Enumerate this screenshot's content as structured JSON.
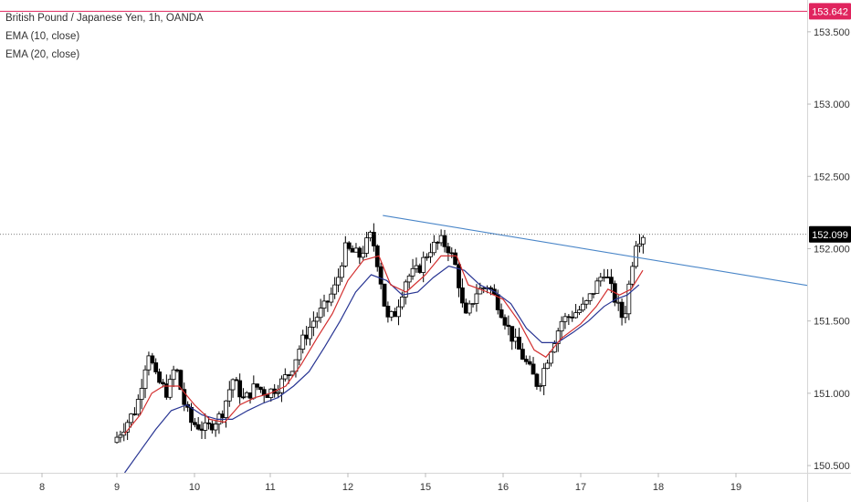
{
  "legend": {
    "symbol": "British Pound / Japanese Yen, 1h, OANDA",
    "ema10": "EMA (10, close)",
    "ema20": "EMA (20, close)"
  },
  "colors": {
    "background": "#ffffff",
    "candle": "#000000",
    "ema10": "#d32f2f",
    "ema20": "#283593",
    "trendline": "#4a86c8",
    "high_line": "#e0245e",
    "last_badge": "#000000",
    "axis_text": "#333333"
  },
  "chart_data": {
    "type": "candlestick",
    "ylim": [
      150.45,
      153.72
    ],
    "y_ticks": [
      "150.500",
      "151.000",
      "151.500",
      "152.000",
      "152.500",
      "153.000",
      "153.500"
    ],
    "x_ticks": [
      "8",
      "9",
      "10",
      "11",
      "12",
      "15",
      "16",
      "17",
      "18",
      "19"
    ],
    "high_marker": {
      "value": 153.642,
      "label": "153.642"
    },
    "last_price": {
      "value": 152.099,
      "label": "152.099"
    },
    "trendline": {
      "start": {
        "date": "12",
        "price": 152.23
      },
      "end": {
        "date": "19",
        "price": 151.65
      }
    },
    "close_path": [
      [
        9.0,
        150.66
      ],
      [
        9.15,
        150.78
      ],
      [
        9.3,
        150.9
      ],
      [
        9.45,
        151.3
      ],
      [
        9.55,
        151.1
      ],
      [
        9.7,
        151.0
      ],
      [
        9.8,
        151.2
      ],
      [
        9.9,
        150.95
      ],
      [
        10.0,
        150.8
      ],
      [
        10.2,
        150.75
      ],
      [
        10.4,
        150.85
      ],
      [
        10.55,
        151.1
      ],
      [
        10.7,
        150.95
      ],
      [
        10.85,
        151.05
      ],
      [
        11.0,
        151.0
      ],
      [
        11.15,
        151.05
      ],
      [
        11.3,
        151.15
      ],
      [
        11.45,
        151.35
      ],
      [
        11.6,
        151.5
      ],
      [
        11.75,
        151.6
      ],
      [
        11.9,
        151.75
      ],
      [
        12.0,
        152.0
      ],
      [
        12.2,
        151.95
      ],
      [
        12.35,
        152.1
      ],
      [
        12.45,
        151.85
      ],
      [
        12.55,
        151.5
      ],
      [
        12.65,
        151.55
      ],
      [
        12.8,
        151.8
      ],
      [
        12.95,
        151.85
      ],
      [
        13.1,
        152.0
      ],
      [
        13.25,
        152.05
      ],
      [
        13.35,
        152.0
      ],
      [
        13.45,
        151.85
      ],
      [
        13.55,
        151.5
      ],
      [
        13.7,
        151.7
      ],
      [
        13.85,
        151.75
      ],
      [
        14.0,
        151.6
      ],
      [
        14.15,
        151.4
      ],
      [
        14.35,
        151.2
      ],
      [
        14.5,
        151.05
      ],
      [
        14.65,
        151.3
      ],
      [
        14.8,
        151.5
      ],
      [
        14.95,
        151.55
      ],
      [
        15.1,
        151.6
      ],
      [
        15.25,
        151.75
      ],
      [
        15.35,
        151.85
      ],
      [
        15.45,
        151.7
      ],
      [
        15.6,
        151.5
      ],
      [
        15.75,
        152.05
      ],
      [
        15.85,
        152.1
      ]
    ],
    "ema10_path": [
      [
        9.1,
        150.72
      ],
      [
        9.3,
        150.85
      ],
      [
        9.45,
        151.0
      ],
      [
        9.6,
        151.05
      ],
      [
        9.8,
        151.05
      ],
      [
        10.0,
        150.92
      ],
      [
        10.2,
        150.82
      ],
      [
        10.4,
        150.8
      ],
      [
        10.6,
        150.92
      ],
      [
        10.8,
        150.97
      ],
      [
        11.0,
        151.0
      ],
      [
        11.2,
        151.05
      ],
      [
        11.4,
        151.2
      ],
      [
        11.6,
        151.38
      ],
      [
        11.8,
        151.55
      ],
      [
        12.0,
        151.78
      ],
      [
        12.2,
        151.92
      ],
      [
        12.4,
        151.95
      ],
      [
        12.55,
        151.75
      ],
      [
        12.75,
        151.7
      ],
      [
        13.0,
        151.82
      ],
      [
        13.2,
        151.95
      ],
      [
        13.4,
        151.95
      ],
      [
        13.55,
        151.75
      ],
      [
        13.8,
        151.7
      ],
      [
        14.0,
        151.65
      ],
      [
        14.2,
        151.5
      ],
      [
        14.4,
        151.3
      ],
      [
        14.55,
        151.25
      ],
      [
        14.75,
        151.38
      ],
      [
        15.0,
        151.48
      ],
      [
        15.2,
        151.6
      ],
      [
        15.35,
        151.72
      ],
      [
        15.5,
        151.68
      ],
      [
        15.65,
        151.72
      ],
      [
        15.8,
        151.85
      ]
    ],
    "ema20_path": [
      [
        9.1,
        150.45
      ],
      [
        9.3,
        150.6
      ],
      [
        9.5,
        150.75
      ],
      [
        9.7,
        150.88
      ],
      [
        9.9,
        150.92
      ],
      [
        10.1,
        150.85
      ],
      [
        10.3,
        150.82
      ],
      [
        10.5,
        150.82
      ],
      [
        10.7,
        150.88
      ],
      [
        10.9,
        150.93
      ],
      [
        11.1,
        150.97
      ],
      [
        11.3,
        151.05
      ],
      [
        11.5,
        151.15
      ],
      [
        11.7,
        151.32
      ],
      [
        11.9,
        151.5
      ],
      [
        12.1,
        151.7
      ],
      [
        12.3,
        151.82
      ],
      [
        12.5,
        151.78
      ],
      [
        12.7,
        151.68
      ],
      [
        12.9,
        151.7
      ],
      [
        13.1,
        151.8
      ],
      [
        13.3,
        151.88
      ],
      [
        13.5,
        151.85
      ],
      [
        13.7,
        151.75
      ],
      [
        13.9,
        151.7
      ],
      [
        14.1,
        151.62
      ],
      [
        14.3,
        151.45
      ],
      [
        14.5,
        151.35
      ],
      [
        14.7,
        151.35
      ],
      [
        14.9,
        151.42
      ],
      [
        15.1,
        151.5
      ],
      [
        15.3,
        151.6
      ],
      [
        15.45,
        151.65
      ],
      [
        15.6,
        151.68
      ],
      [
        15.75,
        151.75
      ]
    ]
  }
}
